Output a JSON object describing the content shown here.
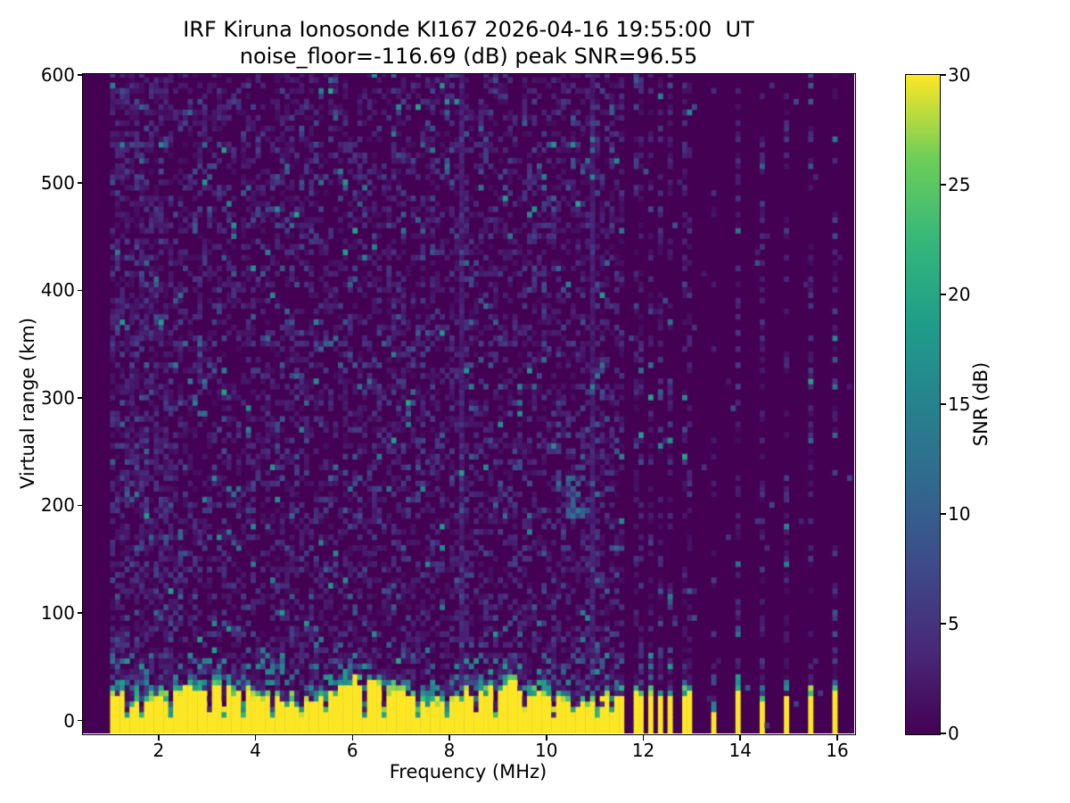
{
  "figure": {
    "title_line1": "IRF Kiruna Ionosonde KI167 2026-04-16 19:55:00  UT",
    "title_line2": "noise_floor=-116.69 (dB) peak SNR=96.55",
    "background": "#ffffff",
    "text_color": "#000000"
  },
  "chart_data": {
    "type": "heatmap",
    "title": "IRF Kiruna Ionosonde KI167 2026-04-16 19:55:00  UT\nnoise_floor=-116.69 (dB) peak SNR=96.55",
    "xlabel": "Frequency (MHz)",
    "ylabel": "Virtual range (km)",
    "xlim": [
      0.44,
      16.35
    ],
    "ylim": [
      -12,
      601
    ],
    "xticks": [
      2,
      4,
      6,
      8,
      10,
      12,
      14,
      16
    ],
    "yticks": [
      0,
      100,
      200,
      300,
      400,
      500,
      600
    ],
    "grid": false,
    "noise_floor_db": -116.69,
    "peak_snr_db": 96.55,
    "colorbar": {
      "label": "SNR (dB)",
      "vmin": 0,
      "vmax": 30,
      "ticks": [
        0,
        5,
        10,
        15,
        20,
        25,
        30
      ],
      "colormap": "viridis"
    },
    "viridis_stops": [
      [
        0.0,
        "#440154"
      ],
      [
        0.125,
        "#482878"
      ],
      [
        0.25,
        "#3e4989"
      ],
      [
        0.375,
        "#31688e"
      ],
      [
        0.5,
        "#26828e"
      ],
      [
        0.625,
        "#1f9e89"
      ],
      [
        0.75,
        "#35b779"
      ],
      [
        0.875,
        "#6ece58"
      ],
      [
        1.0,
        "#fde725"
      ]
    ],
    "heatmap_model": {
      "seed": 42,
      "freq_bin_mhz": 0.1,
      "range_bin_km": 5,
      "scan_start_mhz": 1.0,
      "continuous_scan_end_mhz": 11.62,
      "discrete_frequencies_mhz": [
        11.8,
        12.0,
        12.2,
        12.4,
        12.6,
        12.8,
        13.0,
        13.45,
        13.95,
        14.45,
        14.95,
        15.45,
        15.95
      ],
      "weak_frequencies_mhz": [
        13.45
      ],
      "ground_return": {
        "snr_db": 30,
        "top_km_mean": 26,
        "top_km_jitter": 11,
        "bottom_km": -12
      },
      "notch_frequencies_mhz": [
        1.35,
        1.62,
        2.28,
        3.02,
        3.38,
        3.78,
        4.32,
        4.92,
        5.48,
        6.28,
        6.63,
        7.32,
        7.95,
        8.58,
        8.97,
        9.55,
        10.12,
        10.55,
        11.05,
        11.38
      ],
      "rfi_lines_mhz": [
        8.22,
        10.93
      ],
      "echo_trace": {
        "f_start_mhz": 10.42,
        "f_end_mhz": 10.78,
        "range_km": [
          190,
          244
        ]
      },
      "noise": {
        "density_continuous": 0.4,
        "density_low_freq_boost": 0.16,
        "density_stripe": 0.34,
        "density_off": 0.012,
        "mean_db": 2.4
      }
    }
  }
}
